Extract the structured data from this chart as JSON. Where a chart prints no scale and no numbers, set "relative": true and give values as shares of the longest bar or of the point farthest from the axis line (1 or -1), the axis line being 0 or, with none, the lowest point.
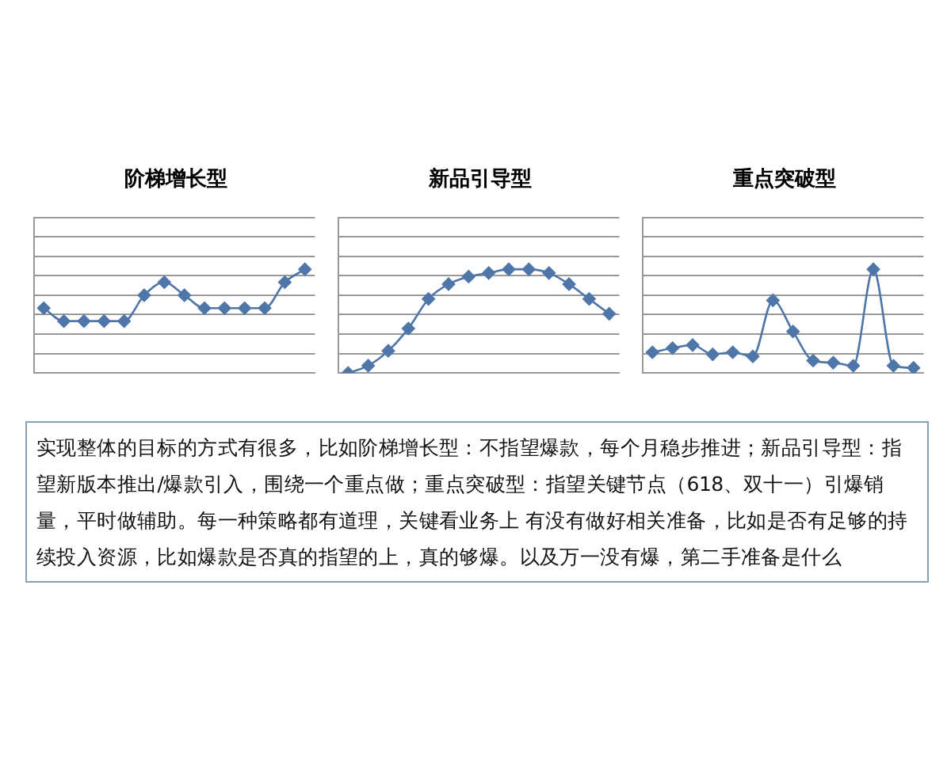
{
  "chart_data": [
    {
      "type": "line",
      "title": "阶梯增长型",
      "relative": true,
      "categories": [
        null,
        null,
        null,
        null,
        null,
        null,
        null,
        null,
        null,
        null,
        null,
        null,
        null,
        null
      ],
      "series": [
        {
          "color": "#4f76a8",
          "values": [
            0.625,
            0.5,
            0.5,
            0.5,
            0.5,
            0.75,
            0.875,
            0.75,
            0.625,
            0.625,
            0.625,
            0.625,
            0.875,
            1
          ]
        }
      ],
      "marker": "diamond",
      "grid": "y",
      "legend": false
    },
    {
      "type": "line",
      "title": "新品引导型",
      "relative": true,
      "categories": [
        null,
        null,
        null,
        null,
        null,
        null,
        null,
        null,
        null,
        null,
        null,
        null,
        null,
        null
      ],
      "series": [
        {
          "color": "#4f76a8",
          "values": [
            0,
            0.071,
            0.214,
            0.429,
            0.714,
            0.857,
            0.929,
            0.964,
            1,
            1,
            0.964,
            0.857,
            0.714,
            0.571
          ]
        }
      ],
      "marker": "diamond",
      "grid": "y",
      "legend": false
    },
    {
      "type": "line",
      "title": "重点突破型",
      "relative": true,
      "categories": [
        null,
        null,
        null,
        null,
        null,
        null,
        null,
        null,
        null,
        null,
        null,
        null,
        null,
        null
      ],
      "series": [
        {
          "color": "#4f76a8",
          "values": [
            0.2,
            0.24,
            0.27,
            0.18,
            0.2,
            0.16,
            0.7,
            0.4,
            0.12,
            0.1,
            0.07,
            1,
            0.07,
            0.05
          ]
        }
      ],
      "marker": "diamond",
      "grid": "y",
      "legend": false
    },
    {
      "type": "other",
      "annotations": [
        "实现整体的目标的方式有很多，比如阶梯增长型：不指望爆款，每个月稳步推进；新品引导型：指望新版本推出/爆款引入，围绕一个重点做；重点突破型：指望关键节点（618、双十一）引爆销量，平时做辅助。每一种策略都有道理，关键看业务上 有没有做好相关准备，比如是否有足够的持续投入资源，比如爆款是否真的指望的上，真的够爆。以及万一没有爆，第二手准备是什么"
      ]
    }
  ]
}
